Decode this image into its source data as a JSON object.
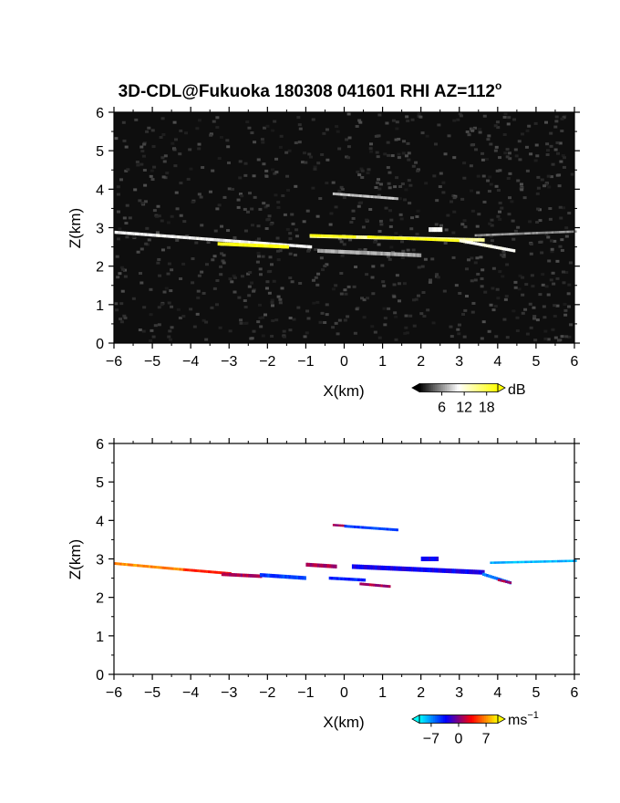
{
  "title": "3D-CDL@Fukuoka 180308 041601 RHI AZ=112",
  "title_degree": "o",
  "chart_data": [
    {
      "type": "heatmap",
      "quantity": "reflectivity",
      "xlabel": "X(km)",
      "ylabel": "Z(km)",
      "xlim": [
        -6,
        6
      ],
      "ylim": [
        0,
        6
      ],
      "x_ticks": [
        -6,
        -5,
        -4,
        -3,
        -2,
        -1,
        0,
        1,
        2,
        3,
        4,
        5,
        6
      ],
      "y_ticks": [
        0,
        1,
        2,
        3,
        4,
        5,
        6
      ],
      "grid": false,
      "colorbar": {
        "unit": "dB",
        "ticks": [
          "6",
          "12",
          "18"
        ],
        "range": [
          0,
          21
        ],
        "colormap": "grayscale-to-yellow",
        "colors": [
          "#000000",
          "#ffffff",
          "#ffff00"
        ]
      },
      "layers": [
        {
          "x0": -6.0,
          "x1": -0.9,
          "z0": 2.88,
          "z1": 2.5,
          "thickness": 0.08,
          "value": 10
        },
        {
          "x0": -3.3,
          "x1": -1.5,
          "z0": 2.58,
          "z1": 2.5,
          "thickness": 0.09,
          "value": 20
        },
        {
          "x0": -0.9,
          "x1": 3.6,
          "z0": 2.78,
          "z1": 2.68,
          "thickness": 0.09,
          "value": 14
        },
        {
          "x0": -0.9,
          "x1": 0.3,
          "z0": 2.8,
          "z1": 2.76,
          "thickness": 0.07,
          "value": 20
        },
        {
          "x0": 0.6,
          "x1": 3.0,
          "z0": 2.76,
          "z1": 2.66,
          "thickness": 0.07,
          "value": 20
        },
        {
          "x0": 3.0,
          "x1": 4.4,
          "z0": 2.66,
          "z1": 2.4,
          "thickness": 0.08,
          "value": 11
        },
        {
          "x0": 3.4,
          "x1": 6.0,
          "z0": 2.8,
          "z1": 2.9,
          "thickness": 0.06,
          "value": 6
        },
        {
          "x0": -0.3,
          "x1": 1.4,
          "z0": 3.88,
          "z1": 3.75,
          "thickness": 0.07,
          "value": 8
        },
        {
          "x0": -0.7,
          "x1": 2.0,
          "z0": 2.4,
          "z1": 2.28,
          "thickness": 0.1,
          "value": 7
        },
        {
          "x0": 2.2,
          "x1": 2.5,
          "z0": 2.95,
          "z1": 2.95,
          "thickness": 0.12,
          "value": 10
        }
      ]
    },
    {
      "type": "heatmap",
      "quantity": "doppler velocity",
      "xlabel": "X(km)",
      "ylabel": "Z(km)",
      "xlim": [
        -6,
        6
      ],
      "ylim": [
        0,
        6
      ],
      "x_ticks": [
        -6,
        -5,
        -4,
        -3,
        -2,
        -1,
        0,
        1,
        2,
        3,
        4,
        5,
        6
      ],
      "y_ticks": [
        0,
        1,
        2,
        3,
        4,
        5,
        6
      ],
      "grid": false,
      "colorbar": {
        "unit": "ms",
        "unit_exponent": "−1",
        "ticks": [
          "−7",
          "0",
          "7"
        ],
        "range": [
          -10,
          10
        ],
        "colormap": "cyan-blue-red-yellow",
        "colors": [
          "#00ffff",
          "#0000ff",
          "#ff0000",
          "#ffff00"
        ]
      },
      "layers": [
        {
          "x0": -6.0,
          "x1": -4.2,
          "z0": 2.88,
          "z1": 2.72,
          "thickness": 0.07,
          "value": 7
        },
        {
          "x0": -4.2,
          "x1": -3.0,
          "z0": 2.72,
          "z1": 2.62,
          "thickness": 0.07,
          "value": 4
        },
        {
          "x0": -3.2,
          "x1": -2.2,
          "z0": 2.6,
          "z1": 2.55,
          "thickness": 0.09,
          "value": 1
        },
        {
          "x0": -2.2,
          "x1": -1.0,
          "z0": 2.58,
          "z1": 2.5,
          "thickness": 0.1,
          "value": -5
        },
        {
          "x0": -1.0,
          "x1": -0.2,
          "z0": 2.85,
          "z1": 2.8,
          "thickness": 0.1,
          "value": 1
        },
        {
          "x0": -0.4,
          "x1": 0.5,
          "z0": 2.5,
          "z1": 2.45,
          "thickness": 0.08,
          "value": -4
        },
        {
          "x0": 0.2,
          "x1": 3.6,
          "z0": 2.8,
          "z1": 2.65,
          "thickness": 0.12,
          "value": -3
        },
        {
          "x0": 3.6,
          "x1": 4.3,
          "z0": 2.6,
          "z1": 2.38,
          "thickness": 0.08,
          "value": -6
        },
        {
          "x0": 4.0,
          "x1": 4.3,
          "z0": 2.45,
          "z1": 2.38,
          "thickness": 0.06,
          "value": 1
        },
        {
          "x0": 3.8,
          "x1": 6.0,
          "z0": 2.9,
          "z1": 2.95,
          "thickness": 0.06,
          "value": -8
        },
        {
          "x0": -0.3,
          "x1": 0.0,
          "z0": 3.88,
          "z1": 3.86,
          "thickness": 0.06,
          "value": 1
        },
        {
          "x0": 0.0,
          "x1": 1.4,
          "z0": 3.85,
          "z1": 3.75,
          "thickness": 0.07,
          "value": -5
        },
        {
          "x0": 0.4,
          "x1": 1.2,
          "z0": 2.35,
          "z1": 2.28,
          "thickness": 0.07,
          "value": 1
        },
        {
          "x0": 2.0,
          "x1": 2.4,
          "z0": 3.0,
          "z1": 3.0,
          "thickness": 0.12,
          "value": -3
        }
      ]
    }
  ]
}
